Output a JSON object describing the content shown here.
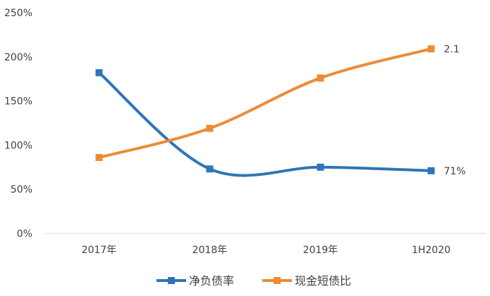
{
  "chart_data": {
    "type": "line",
    "categories": [
      "2017年",
      "2018年",
      "2019年",
      "1H2020"
    ],
    "y_ticks": [
      "0%",
      "50%",
      "100%",
      "150%",
      "200%",
      "250%"
    ],
    "ylim": [
      0,
      250
    ],
    "grid": false,
    "legend_placement": "bottom",
    "series": [
      {
        "name": "净负债率",
        "values": [
          182,
          73,
          75,
          71
        ],
        "color": "#2E75B6",
        "end_label": "71%"
      },
      {
        "name": "现金短债比",
        "values": [
          86,
          119,
          176,
          209
        ],
        "color": "#ED8B34",
        "end_label": "2.1"
      }
    ]
  }
}
